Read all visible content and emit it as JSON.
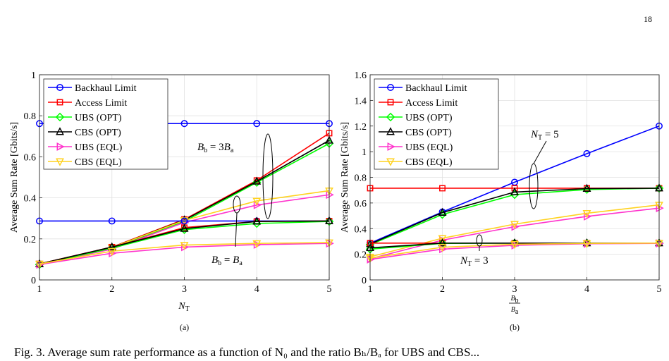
{
  "page": {
    "number": "18",
    "caption_fragment": "Fig. 3. Average sum rate performance as a function of N₀ and the ratio Bₕ/Bₐ for UBS and CBS..."
  },
  "chart_data": [
    {
      "type": "line",
      "panel_label": "(a)",
      "xlabel": "N",
      "xlabel_sub": "T",
      "ylabel": "Average Sum Rate [Gbits/s]",
      "xlim": [
        1,
        5
      ],
      "ylim": [
        0,
        1
      ],
      "xticks": [
        "1",
        "2",
        "3",
        "4",
        "5"
      ],
      "yticks": [
        "0",
        "0.2",
        "0.4",
        "0.6",
        "0.8",
        "1"
      ],
      "grid": true,
      "legend_position": "top-left",
      "x": [
        1,
        2,
        3,
        4,
        5
      ],
      "series": [
        {
          "name": "Backhaul Limit",
          "color": "#0000ff",
          "marker": "circle",
          "values": [
            0.762,
            0.762,
            0.762,
            0.762,
            0.762
          ],
          "group": "Bb=3Ba"
        },
        {
          "name": "Access Limit",
          "color": "#ff0000",
          "marker": "square",
          "values": [
            0.078,
            0.16,
            0.295,
            0.485,
            0.715
          ],
          "group": "Bb=3Ba"
        },
        {
          "name": "UBS (OPT)",
          "color": "#00ff00",
          "marker": "diamond",
          "values": [
            0.075,
            0.155,
            0.285,
            0.475,
            0.665
          ],
          "group": "Bb=3Ba"
        },
        {
          "name": "CBS (OPT)",
          "color": "#000000",
          "marker": "triangle-up",
          "values": [
            0.078,
            0.158,
            0.292,
            0.48,
            0.68
          ],
          "group": "Bb=3Ba"
        },
        {
          "name": "UBS (EQL)",
          "color": "#ff33cc",
          "marker": "triangle-right",
          "values": [
            0.075,
            0.15,
            0.28,
            0.365,
            0.415
          ],
          "group": "Bb=3Ba"
        },
        {
          "name": "CBS (EQL)",
          "color": "#ffd21f",
          "marker": "triangle-down",
          "values": [
            0.078,
            0.158,
            0.29,
            0.385,
            0.435
          ],
          "group": "Bb=3Ba"
        },
        {
          "color": "#0000ff",
          "marker": "circle",
          "values": [
            0.287,
            0.287,
            0.287,
            0.287,
            0.287
          ],
          "group": "Bb=Ba"
        },
        {
          "color": "#ff0000",
          "marker": "square",
          "values": [
            0.078,
            0.16,
            0.255,
            0.285,
            0.287
          ],
          "group": "Bb=Ba"
        },
        {
          "color": "#00ff00",
          "marker": "diamond",
          "values": [
            0.075,
            0.155,
            0.245,
            0.275,
            0.285
          ],
          "group": "Bb=Ba"
        },
        {
          "color": "#000000",
          "marker": "triangle-up",
          "values": [
            0.078,
            0.16,
            0.25,
            0.285,
            0.287
          ],
          "group": "Bb=Ba"
        },
        {
          "color": "#ff33cc",
          "marker": "triangle-right",
          "values": [
            0.075,
            0.13,
            0.16,
            0.172,
            0.178
          ],
          "group": "Bb=Ba"
        },
        {
          "color": "#ffd21f",
          "marker": "triangle-down",
          "values": [
            0.078,
            0.14,
            0.17,
            0.178,
            0.182
          ],
          "group": "Bb=Ba"
        }
      ],
      "annotations": [
        {
          "text": "B",
          "sub": "b",
          "rest": " = 3B",
          "sub2": "a"
        },
        {
          "text": "B",
          "sub": "b",
          "rest": " = B",
          "sub2": "a"
        }
      ]
    },
    {
      "type": "line",
      "panel_label": "(b)",
      "xlabel_num": "B",
      "xlabel_num_sub": "b",
      "xlabel_den": "B",
      "xlabel_den_sub": "a",
      "ylabel": "Average Sum Rate [Gbits/s]",
      "xlim": [
        1,
        5
      ],
      "ylim": [
        0,
        1.6
      ],
      "xticks": [
        "1",
        "2",
        "3",
        "4",
        "5"
      ],
      "yticks": [
        "0",
        "0.2",
        "0.4",
        "0.6",
        "0.8",
        "1",
        "1.2",
        "1.4",
        "1.6"
      ],
      "grid": true,
      "legend_position": "top-left",
      "x": [
        1,
        2,
        3,
        4,
        5
      ],
      "series": [
        {
          "name": "Backhaul Limit",
          "color": "#0000ff",
          "marker": "circle",
          "values": [
            0.287,
            0.53,
            0.762,
            0.985,
            1.2
          ],
          "group": "NT=5"
        },
        {
          "name": "Access Limit",
          "color": "#ff0000",
          "marker": "square",
          "values": [
            0.715,
            0.715,
            0.715,
            0.715,
            0.715
          ],
          "group": "NT=5"
        },
        {
          "name": "UBS (OPT)",
          "color": "#00ff00",
          "marker": "diamond",
          "values": [
            0.275,
            0.51,
            0.665,
            0.705,
            0.715
          ],
          "group": "NT=5"
        },
        {
          "name": "CBS (OPT)",
          "color": "#000000",
          "marker": "triangle-up",
          "values": [
            0.28,
            0.525,
            0.685,
            0.712,
            0.715
          ],
          "group": "NT=5"
        },
        {
          "name": "UBS (EQL)",
          "color": "#ff33cc",
          "marker": "triangle-right",
          "values": [
            0.165,
            0.31,
            0.415,
            0.495,
            0.56
          ],
          "group": "NT=5"
        },
        {
          "name": "CBS (EQL)",
          "color": "#ffd21f",
          "marker": "triangle-down",
          "values": [
            0.18,
            0.325,
            0.435,
            0.52,
            0.585
          ],
          "group": "NT=5"
        },
        {
          "color": "#ff0000",
          "marker": "square",
          "values": [
            0.287,
            0.287,
            0.287,
            0.287,
            0.287
          ],
          "group": "NT=3"
        },
        {
          "color": "#00ff00",
          "marker": "diamond",
          "values": [
            0.24,
            0.285,
            0.287,
            0.287,
            0.287
          ],
          "group": "NT=3"
        },
        {
          "color": "#000000",
          "marker": "triangle-up",
          "values": [
            0.25,
            0.287,
            0.287,
            0.287,
            0.287
          ],
          "group": "NT=3"
        },
        {
          "color": "#ff33cc",
          "marker": "triangle-right",
          "values": [
            0.16,
            0.24,
            0.27,
            0.282,
            0.285
          ],
          "group": "NT=3"
        },
        {
          "color": "#ffd21f",
          "marker": "triangle-down",
          "values": [
            0.17,
            0.255,
            0.278,
            0.285,
            0.287
          ],
          "group": "NT=3"
        }
      ],
      "annotations": [
        {
          "text": "N",
          "sub": "T",
          "rest": " = 5"
        },
        {
          "text": "N",
          "sub": "T",
          "rest": " = 3"
        }
      ]
    }
  ]
}
